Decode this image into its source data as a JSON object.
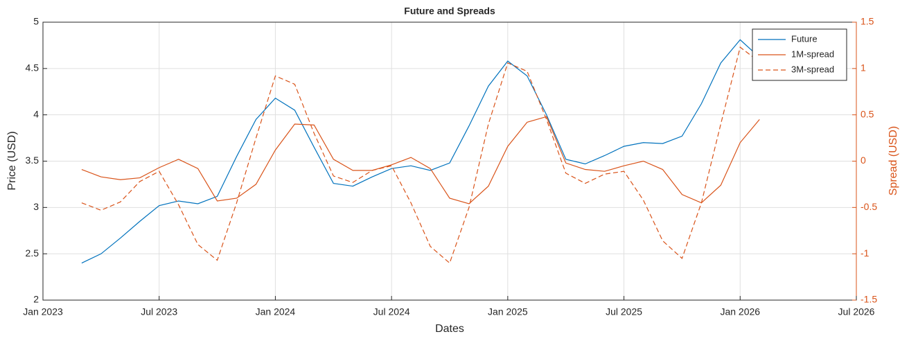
{
  "chart_data": {
    "type": "line",
    "title": "Future and Spreads",
    "x_label": "Dates",
    "y_label": "Price (USD)",
    "y2_label": "Spread (USD)",
    "x": [
      "2023-02",
      "2023-03",
      "2023-04",
      "2023-05",
      "2023-06",
      "2023-07",
      "2023-08",
      "2023-09",
      "2023-10",
      "2023-11",
      "2023-12",
      "2024-01",
      "2024-02",
      "2024-03",
      "2024-04",
      "2024-05",
      "2024-06",
      "2024-07",
      "2024-08",
      "2024-09",
      "2024-10",
      "2024-11",
      "2024-12",
      "2025-01",
      "2025-02",
      "2025-03",
      "2025-04",
      "2025-05",
      "2025-06",
      "2025-07",
      "2025-08",
      "2025-09",
      "2025-10",
      "2025-11",
      "2025-12",
      "2026-01"
    ],
    "xlim": [
      "2023-01",
      "2026-07"
    ],
    "xticks": [
      {
        "value": "2023-01",
        "label": "Jan 2023"
      },
      {
        "value": "2023-07",
        "label": "Jul 2023"
      },
      {
        "value": "2024-01",
        "label": "Jan 2024"
      },
      {
        "value": "2024-07",
        "label": "Jul 2024"
      },
      {
        "value": "2025-01",
        "label": "Jan 2025"
      },
      {
        "value": "2025-07",
        "label": "Jul 2025"
      },
      {
        "value": "2026-01",
        "label": "Jan 2026"
      },
      {
        "value": "2026-07",
        "label": "Jul 2026"
      }
    ],
    "ylim": [
      2,
      5
    ],
    "yticks": [
      2,
      2.5,
      3,
      3.5,
      4,
      4.5,
      5
    ],
    "y2lim": [
      -1.5,
      1.5
    ],
    "y2ticks": [
      -1.5,
      -1,
      -0.5,
      0,
      0.5,
      1,
      1.5
    ],
    "grid": true,
    "legend": "top-right",
    "y2_color": "#d95319",
    "series": [
      {
        "name": "Future",
        "color": "#0072bd",
        "style": "solid",
        "values": [
          2.4,
          2.5,
          2.67,
          2.85,
          3.02,
          3.07,
          3.04,
          3.12,
          3.55,
          3.95,
          4.18,
          4.05,
          3.65,
          3.26,
          3.23,
          3.33,
          3.42,
          3.45,
          3.4,
          3.48,
          3.88,
          4.31,
          4.58,
          4.42,
          4.0,
          3.52,
          3.47,
          3.56,
          3.66,
          3.7,
          3.69,
          3.77,
          4.12,
          4.56,
          4.81,
          4.62
        ]
      },
      {
        "name": "1M-spread",
        "color": "#d95319",
        "style": "solid",
        "axis": "y2",
        "values": [
          -0.09,
          -0.17,
          -0.2,
          -0.18,
          -0.07,
          0.02,
          -0.08,
          -0.43,
          -0.4,
          -0.25,
          0.12,
          0.4,
          0.39,
          0.02,
          -0.1,
          -0.1,
          -0.04,
          0.04,
          -0.08,
          -0.4,
          -0.46,
          -0.27,
          0.16,
          0.42,
          0.48,
          -0.02,
          -0.09,
          -0.11,
          -0.05,
          0.0,
          -0.09,
          -0.36,
          -0.45,
          -0.26,
          0.2,
          0.45
        ]
      },
      {
        "name": "3M-spread",
        "color": "#d95319",
        "style": "dashed",
        "axis": "y2",
        "values": [
          -0.45,
          -0.53,
          -0.44,
          -0.22,
          -0.11,
          -0.47,
          -0.9,
          -1.07,
          -0.45,
          0.25,
          0.92,
          0.83,
          0.3,
          -0.16,
          -0.23,
          -0.1,
          -0.05,
          -0.45,
          -0.92,
          -1.1,
          -0.5,
          0.4,
          1.06,
          0.97,
          0.45,
          -0.13,
          -0.24,
          -0.14,
          -0.11,
          -0.42,
          -0.86,
          -1.05,
          -0.45,
          0.4,
          1.23,
          1.07
        ]
      }
    ]
  }
}
